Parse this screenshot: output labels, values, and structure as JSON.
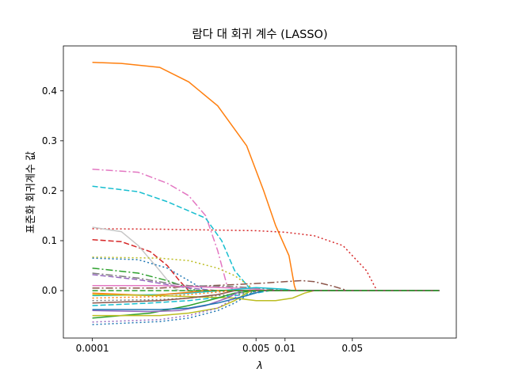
{
  "chart_data": {
    "type": "line",
    "title": "람다 대 회귀 계수 (LASSO)",
    "xlabel": "λ",
    "ylabel": "표준화 회귀계수 값",
    "xscale": "log",
    "xlim": [
      5e-05,
      0.6
    ],
    "ylim": [
      -0.095,
      0.49
    ],
    "xticks": [
      {
        "value": 0.0001,
        "label": "0.0001"
      },
      {
        "value": 0.005,
        "label": "0.005"
      },
      {
        "value": 0.01,
        "label": "0.01"
      },
      {
        "value": 0.05,
        "label": "0.05"
      }
    ],
    "yticks": [
      {
        "value": 0.0,
        "label": "0.0"
      },
      {
        "value": 0.1,
        "label": "0.1"
      },
      {
        "value": 0.2,
        "label": "0.2"
      },
      {
        "value": 0.3,
        "label": "0.3"
      },
      {
        "value": 0.4,
        "label": "0.4"
      }
    ],
    "grid": false,
    "legend": "none",
    "series": [
      {
        "color": "#ff7f0e",
        "style": "solid",
        "points": [
          [
            0.0001,
            0.457
          ],
          [
            0.0002,
            0.455
          ],
          [
            0.0005,
            0.447
          ],
          [
            0.001,
            0.418
          ],
          [
            0.002,
            0.37
          ],
          [
            0.004,
            0.29
          ],
          [
            0.006,
            0.2
          ],
          [
            0.008,
            0.13
          ],
          [
            0.011,
            0.07
          ],
          [
            0.0125,
            0.01
          ],
          [
            0.013,
            0.0
          ],
          [
            0.4,
            0.0
          ]
        ]
      },
      {
        "color": "#e377c2",
        "style": "dashdot",
        "points": [
          [
            0.0001,
            0.243
          ],
          [
            0.0003,
            0.237
          ],
          [
            0.0006,
            0.215
          ],
          [
            0.001,
            0.19
          ],
          [
            0.0015,
            0.15
          ],
          [
            0.002,
            0.08
          ],
          [
            0.0025,
            0.01
          ],
          [
            0.003,
            0.0
          ],
          [
            0.4,
            0.0
          ]
        ]
      },
      {
        "color": "#17becf",
        "style": "dashed",
        "points": [
          [
            0.0001,
            0.209
          ],
          [
            0.0003,
            0.198
          ],
          [
            0.0006,
            0.178
          ],
          [
            0.0015,
            0.145
          ],
          [
            0.0022,
            0.1
          ],
          [
            0.003,
            0.04
          ],
          [
            0.0045,
            0.0
          ],
          [
            0.4,
            0.0
          ]
        ]
      },
      {
        "color": "#d62728",
        "style": "dotted",
        "points": [
          [
            0.0001,
            0.124
          ],
          [
            0.0005,
            0.123
          ],
          [
            0.001,
            0.122
          ],
          [
            0.005,
            0.12
          ],
          [
            0.01,
            0.117
          ],
          [
            0.02,
            0.11
          ],
          [
            0.04,
            0.09
          ],
          [
            0.07,
            0.04
          ],
          [
            0.09,
            0.0
          ],
          [
            0.4,
            0.0
          ]
        ]
      },
      {
        "color": "#d62728",
        "style": "dashed",
        "points": [
          [
            0.0001,
            0.102
          ],
          [
            0.0002,
            0.098
          ],
          [
            0.0004,
            0.078
          ],
          [
            0.0006,
            0.05
          ],
          [
            0.0008,
            0.02
          ],
          [
            0.001,
            0.0
          ],
          [
            0.4,
            0.0
          ]
        ]
      },
      {
        "color": "#c7c7c7",
        "style": "solid",
        "points": [
          [
            0.0001,
            0.127
          ],
          [
            0.0002,
            0.118
          ],
          [
            0.0003,
            0.09
          ],
          [
            0.0005,
            0.04
          ],
          [
            0.0007,
            0.005
          ],
          [
            0.0008,
            0.0
          ],
          [
            0.4,
            0.0
          ]
        ]
      },
      {
        "color": "#bcbd22",
        "style": "dotted",
        "points": [
          [
            0.0001,
            0.067
          ],
          [
            0.0005,
            0.065
          ],
          [
            0.001,
            0.06
          ],
          [
            0.002,
            0.045
          ],
          [
            0.003,
            0.03
          ],
          [
            0.005,
            0.0
          ],
          [
            0.4,
            0.0
          ]
        ]
      },
      {
        "color": "#1f77b4",
        "style": "dotted",
        "points": [
          [
            0.0001,
            0.065
          ],
          [
            0.0003,
            0.062
          ],
          [
            0.0006,
            0.045
          ],
          [
            0.001,
            0.02
          ],
          [
            0.0015,
            0.0
          ],
          [
            0.4,
            0.0
          ]
        ]
      },
      {
        "color": "#2ca02c",
        "style": "dashdot",
        "points": [
          [
            0.0001,
            0.045
          ],
          [
            0.0003,
            0.035
          ],
          [
            0.0006,
            0.02
          ],
          [
            0.001,
            0.005
          ],
          [
            0.0012,
            0.0
          ],
          [
            0.4,
            0.0
          ]
        ]
      },
      {
        "color": "#8c564b",
        "style": "dashdot",
        "points": [
          [
            0.0001,
            0.005
          ],
          [
            0.0005,
            0.005
          ],
          [
            0.001,
            0.008
          ],
          [
            0.003,
            0.012
          ],
          [
            0.006,
            0.015
          ],
          [
            0.01,
            0.018
          ],
          [
            0.015,
            0.02
          ],
          [
            0.02,
            0.018
          ],
          [
            0.03,
            0.01
          ],
          [
            0.045,
            0.0
          ],
          [
            0.4,
            0.0
          ]
        ]
      },
      {
        "color": "#7f7f7f",
        "style": "dashdot",
        "points": [
          [
            0.0001,
            0.035
          ],
          [
            0.0003,
            0.025
          ],
          [
            0.0006,
            0.015
          ],
          [
            0.001,
            0.01
          ],
          [
            0.003,
            0.008
          ],
          [
            0.005,
            0.005
          ],
          [
            0.008,
            0.002
          ],
          [
            0.01,
            0.0
          ],
          [
            0.4,
            0.0
          ]
        ]
      },
      {
        "color": "#9467bd",
        "style": "dashed",
        "points": [
          [
            0.0001,
            0.032
          ],
          [
            0.0003,
            0.022
          ],
          [
            0.0006,
            0.012
          ],
          [
            0.001,
            0.005
          ],
          [
            0.002,
            0.0
          ],
          [
            0.4,
            0.0
          ]
        ]
      },
      {
        "color": "#e377c2",
        "style": "solid",
        "points": [
          [
            0.0001,
            0.01
          ],
          [
            0.0005,
            0.01
          ],
          [
            0.001,
            0.008
          ],
          [
            0.003,
            0.005
          ],
          [
            0.005,
            0.003
          ],
          [
            0.007,
            0.0
          ],
          [
            0.4,
            0.0
          ]
        ]
      },
      {
        "color": "#17becf",
        "style": "solid",
        "points": [
          [
            0.0001,
            -0.01
          ],
          [
            0.0005,
            -0.008
          ],
          [
            0.001,
            -0.005
          ],
          [
            0.003,
            0.002
          ],
          [
            0.005,
            0.006
          ],
          [
            0.01,
            0.003
          ],
          [
            0.012,
            0.0
          ],
          [
            0.4,
            0.0
          ]
        ]
      },
      {
        "color": "#ff7f0e",
        "style": "solid",
        "points": [
          [
            0.0001,
            -0.005
          ],
          [
            0.0004,
            -0.01
          ],
          [
            0.0008,
            -0.005
          ],
          [
            0.0015,
            0.0
          ],
          [
            0.4,
            0.0
          ]
        ]
      },
      {
        "color": "#ff7f0e",
        "style": "dotted",
        "points": [
          [
            0.0001,
            -0.015
          ],
          [
            0.0005,
            -0.012
          ],
          [
            0.001,
            -0.008
          ],
          [
            0.002,
            -0.003
          ],
          [
            0.003,
            0.0
          ],
          [
            0.4,
            0.0
          ]
        ]
      },
      {
        "color": "#17becf",
        "style": "dashed",
        "points": [
          [
            0.0001,
            -0.03
          ],
          [
            0.0004,
            -0.025
          ],
          [
            0.001,
            -0.02
          ],
          [
            0.003,
            -0.01
          ],
          [
            0.005,
            -0.005
          ],
          [
            0.007,
            0.0
          ],
          [
            0.4,
            0.0
          ]
        ]
      },
      {
        "color": "#7f7f7f",
        "style": "dotted",
        "points": [
          [
            0.0001,
            -0.02
          ],
          [
            0.0005,
            -0.018
          ],
          [
            0.001,
            -0.015
          ],
          [
            0.002,
            -0.01
          ],
          [
            0.004,
            -0.005
          ],
          [
            0.006,
            0.0
          ],
          [
            0.4,
            0.0
          ]
        ]
      },
      {
        "color": "#bcbd22",
        "style": "solid",
        "points": [
          [
            0.0001,
            -0.008
          ],
          [
            0.0005,
            -0.01
          ],
          [
            0.001,
            -0.012
          ],
          [
            0.003,
            -0.015
          ],
          [
            0.005,
            -0.02
          ],
          [
            0.008,
            -0.02
          ],
          [
            0.012,
            -0.015
          ],
          [
            0.016,
            -0.005
          ],
          [
            0.02,
            0.0
          ],
          [
            0.4,
            0.0
          ]
        ]
      },
      {
        "color": "#2ca02c",
        "style": "solid",
        "points": [
          [
            0.0001,
            -0.055
          ],
          [
            0.0004,
            -0.045
          ],
          [
            0.001,
            -0.03
          ],
          [
            0.002,
            -0.015
          ],
          [
            0.003,
            -0.005
          ],
          [
            0.005,
            0.0
          ],
          [
            0.4,
            0.0
          ]
        ]
      },
      {
        "color": "#bcbd22",
        "style": "solid",
        "points": [
          [
            0.0001,
            -0.05
          ],
          [
            0.0005,
            -0.05
          ],
          [
            0.001,
            -0.045
          ],
          [
            0.002,
            -0.035
          ],
          [
            0.003,
            -0.02
          ],
          [
            0.004,
            -0.005
          ],
          [
            0.0045,
            0.0
          ],
          [
            0.4,
            0.0
          ]
        ]
      },
      {
        "color": "#9467bd",
        "style": "solid",
        "points": [
          [
            0.0001,
            -0.04
          ],
          [
            0.0004,
            -0.042
          ],
          [
            0.0008,
            -0.04
          ],
          [
            0.0015,
            -0.03
          ],
          [
            0.0025,
            -0.015
          ],
          [
            0.0035,
            0.0
          ],
          [
            0.4,
            0.0
          ]
        ]
      },
      {
        "color": "#1f77b4",
        "style": "solid",
        "points": [
          [
            0.0001,
            -0.038
          ],
          [
            0.0005,
            -0.038
          ],
          [
            0.001,
            -0.035
          ],
          [
            0.002,
            -0.025
          ],
          [
            0.004,
            -0.01
          ],
          [
            0.006,
            0.0
          ],
          [
            0.4,
            0.0
          ]
        ]
      },
      {
        "color": "#1f77b4",
        "style": "dotted",
        "points": [
          [
            0.0001,
            -0.068
          ],
          [
            0.0005,
            -0.062
          ],
          [
            0.001,
            -0.055
          ],
          [
            0.002,
            -0.04
          ],
          [
            0.003,
            -0.025
          ],
          [
            0.004,
            -0.01
          ],
          [
            0.005,
            0.0
          ],
          [
            0.4,
            0.0
          ]
        ]
      },
      {
        "color": "#9467bd",
        "style": "dotted",
        "points": [
          [
            0.0001,
            -0.063
          ],
          [
            0.0005,
            -0.058
          ],
          [
            0.001,
            -0.05
          ],
          [
            0.002,
            -0.035
          ],
          [
            0.003,
            -0.015
          ],
          [
            0.0038,
            0.0
          ],
          [
            0.4,
            0.0
          ]
        ]
      },
      {
        "color": "#8c564b",
        "style": "solid",
        "points": [
          [
            0.0001,
            -0.025
          ],
          [
            0.0005,
            -0.02
          ],
          [
            0.001,
            -0.015
          ],
          [
            0.002,
            -0.008
          ],
          [
            0.003,
            0.0
          ],
          [
            0.4,
            0.0
          ]
        ]
      },
      {
        "color": "#2ca02c",
        "style": "dashed",
        "points": [
          [
            0.0001,
            0.0
          ],
          [
            0.4,
            0.0
          ]
        ]
      }
    ]
  }
}
